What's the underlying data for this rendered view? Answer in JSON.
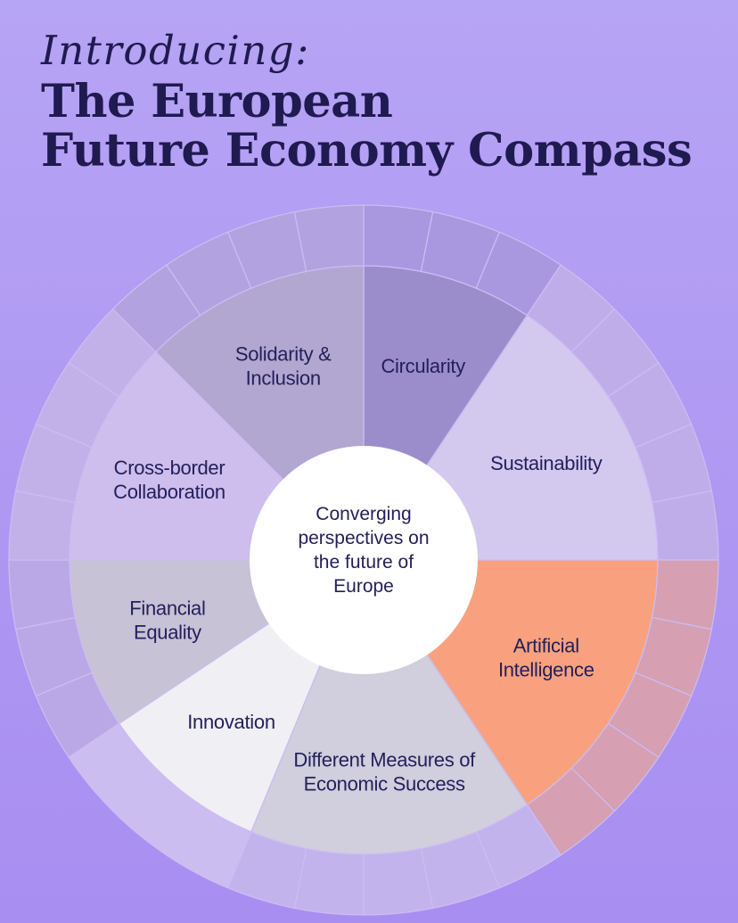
{
  "page": {
    "background_top": "#b6a4f4",
    "background_bottom": "#a88ef1"
  },
  "title": {
    "script_line": "Introducing:",
    "line1": "The European",
    "line2": "Future Economy Compass",
    "color": "#1f1a50"
  },
  "center": {
    "lines": [
      "Converging",
      "perspectives on",
      "the future of",
      "Europe"
    ],
    "circle_color": "#ffffff",
    "text_color": "#23205b"
  },
  "wheel": {
    "stroke_color": "#cbbcf3",
    "text_color": "#23205b",
    "segments": [
      {
        "id": "circularity",
        "label": "Circularity",
        "label_lines": [
          "Circularity"
        ],
        "start_angle": 0,
        "end_angle": 33.75,
        "outer_cells": 3,
        "wedge_color": "#9b8dcb",
        "ring_color": "#a998df",
        "label_angle": 17,
        "label_radius": 228
      },
      {
        "id": "sustainability",
        "label": "Sustainability",
        "label_lines": [
          "Sustainability"
        ],
        "start_angle": 33.75,
        "end_angle": 90,
        "outer_cells": 5,
        "wedge_color": "#d3c9ef",
        "ring_color": "#bfadea",
        "label_angle": 62,
        "label_radius": 232
      },
      {
        "id": "artificial-intelligence",
        "label": "Artificial Intelligence",
        "label_lines": [
          "Artificial",
          "Intelligence"
        ],
        "start_angle": 90,
        "end_angle": 146.25,
        "outer_cells": 5,
        "wedge_color": "#f9a17f",
        "ring_color": "#d69fb2",
        "label_angle": 118,
        "label_radius": 232
      },
      {
        "id": "different-measures",
        "label": "Different Measures of Economic Success",
        "label_lines": [
          "Different Measures of",
          "Economic Success"
        ],
        "start_angle": 146.25,
        "end_angle": 202.5,
        "outer_cells": 5,
        "wedge_color": "#d1cedd",
        "ring_color": "#c3b3ec",
        "label_angle": 174.4,
        "label_radius": 238
      },
      {
        "id": "innovation",
        "label": "Innovation",
        "label_lines": [
          "Innovation"
        ],
        "start_angle": 202.5,
        "end_angle": 236.25,
        "outer_cells": 3,
        "wedge_color": "#f0eff3",
        "ring_color": "#ccbdf1",
        "label_angle": 219.4,
        "label_radius": 234
      },
      {
        "id": "financial-equality",
        "label": "Financial Equality",
        "label_lines": [
          "Financial",
          "Equality"
        ],
        "start_angle": 236.25,
        "end_angle": 270,
        "outer_cells": 3,
        "wedge_color": "#c8c2d6",
        "ring_color": "#b9a8e5",
        "label_angle": 253.1,
        "label_radius": 230
      },
      {
        "id": "cross-border-collaboration",
        "label": "Cross-border Collaboration",
        "label_lines": [
          "Cross-border",
          "Collaboration"
        ],
        "start_angle": 270,
        "end_angle": 315,
        "outer_cells": 4,
        "wedge_color": "#cdbeee",
        "ring_color": "#c2b1e9",
        "label_angle": 292.5,
        "label_radius": 236
      },
      {
        "id": "solidarity-inclusion",
        "label": "Solidarity & Inclusion",
        "label_lines": [
          "Solidarity &",
          "Inclusion"
        ],
        "start_angle": 315,
        "end_angle": 360,
        "outer_cells": 4,
        "wedge_color": "#b2a7d0",
        "ring_color": "#b3a2e0",
        "label_angle": 337.5,
        "label_radius": 236
      }
    ]
  }
}
